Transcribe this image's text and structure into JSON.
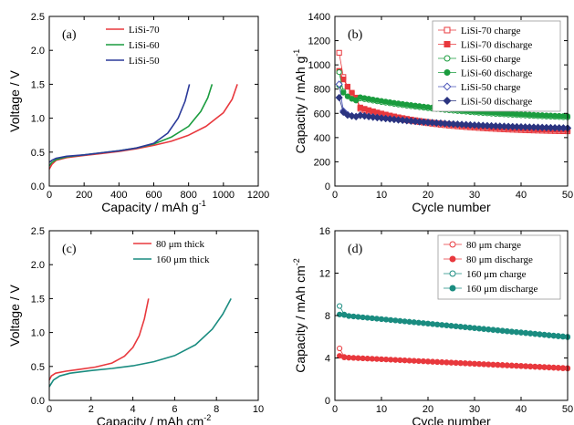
{
  "chart_data": [
    {
      "panel": "(a)",
      "type": "line",
      "xlabel": "Capacity / mAh g",
      "xlabel_sup": "-1",
      "ylabel": "Voltage / V",
      "xlim": [
        0,
        1200
      ],
      "ylim": [
        0,
        2.5
      ],
      "xticks": [
        "0",
        "200",
        "400",
        "600",
        "800",
        "1000",
        "1200"
      ],
      "yticks": [
        "0.0",
        "0.5",
        "1.0",
        "1.5",
        "2.0",
        "2.5"
      ],
      "legend_position": "top-center",
      "series": [
        {
          "name": "LiSi-70",
          "color": "#e8383d",
          "points": [
            [
              0,
              0.25
            ],
            [
              15,
              0.32
            ],
            [
              40,
              0.38
            ],
            [
              100,
              0.42
            ],
            [
              200,
              0.45
            ],
            [
              300,
              0.48
            ],
            [
              400,
              0.51
            ],
            [
              500,
              0.55
            ],
            [
              600,
              0.6
            ],
            [
              700,
              0.66
            ],
            [
              800,
              0.75
            ],
            [
              900,
              0.88
            ],
            [
              1000,
              1.08
            ],
            [
              1050,
              1.28
            ],
            [
              1080,
              1.5
            ]
          ]
        },
        {
          "name": "LiSi-60",
          "color": "#1a9c3e",
          "points": [
            [
              0,
              0.3
            ],
            [
              15,
              0.35
            ],
            [
              40,
              0.39
            ],
            [
              100,
              0.43
            ],
            [
              200,
              0.46
            ],
            [
              300,
              0.49
            ],
            [
              400,
              0.52
            ],
            [
              500,
              0.56
            ],
            [
              600,
              0.62
            ],
            [
              700,
              0.72
            ],
            [
              800,
              0.88
            ],
            [
              870,
              1.1
            ],
            [
              910,
              1.3
            ],
            [
              935,
              1.5
            ]
          ]
        },
        {
          "name": "LiSi-50",
          "color": "#2b3a9a",
          "points": [
            [
              0,
              0.35
            ],
            [
              15,
              0.38
            ],
            [
              40,
              0.41
            ],
            [
              100,
              0.44
            ],
            [
              200,
              0.46
            ],
            [
              300,
              0.49
            ],
            [
              400,
              0.52
            ],
            [
              500,
              0.56
            ],
            [
              600,
              0.63
            ],
            [
              680,
              0.78
            ],
            [
              740,
              1.0
            ],
            [
              780,
              1.25
            ],
            [
              805,
              1.5
            ]
          ]
        }
      ]
    },
    {
      "panel": "(b)",
      "type": "scatter",
      "xlabel": "Cycle number",
      "ylabel": "Capacity / mAh g",
      "ylabel_sup": "-1",
      "xlim": [
        0,
        55
      ],
      "ylim": [
        0,
        1400
      ],
      "xticks": [
        "0",
        "10",
        "20",
        "30",
        "40",
        "50"
      ],
      "yticks": [
        "0",
        "200",
        "400",
        "600",
        "800",
        "1000",
        "1200",
        "1400"
      ],
      "legend_position": "top-right",
      "series": [
        {
          "name": "LiSi-70 charge",
          "color": "#e8383d",
          "marker": "square",
          "filled": false,
          "start": [
            1100,
            900,
            820,
            760,
            720
          ],
          "k": 38,
          "a": 210,
          "f": 440
        },
        {
          "name": "LiSi-70 discharge",
          "color": "#e8383d",
          "marker": "square",
          "filled": true,
          "start": [
            950,
            880,
            820,
            770,
            730
          ],
          "k": 38,
          "a": 210,
          "f": 450
        },
        {
          "name": "LiSi-60 charge",
          "color": "#1a9c3e",
          "marker": "circle",
          "filled": false,
          "start": [
            940,
            780,
            740,
            720,
            710
          ],
          "k": 65,
          "a": 200,
          "f": 530
        },
        {
          "name": "LiSi-60 discharge",
          "color": "#1a9c3e",
          "marker": "circle",
          "filled": true,
          "start": [
            830,
            770,
            740,
            720,
            705
          ],
          "k": 65,
          "a": 200,
          "f": 540
        },
        {
          "name": "LiSi-50 charge",
          "color": "#4a54b8",
          "marker": "diamond",
          "filled": false,
          "start": [
            840,
            620,
            590,
            580,
            575
          ],
          "k": 55,
          "a": 130,
          "f": 460
        },
        {
          "name": "LiSi-50 discharge",
          "color": "#2b3480",
          "marker": "diamond",
          "filled": true,
          "start": [
            730,
            610,
            585,
            578,
            572
          ],
          "k": 55,
          "a": 125,
          "f": 462
        }
      ],
      "n_cycles": 55
    },
    {
      "panel": "(c)",
      "type": "line",
      "xlabel": "Capacity / mAh cm",
      "xlabel_sup": "-2",
      "ylabel": "Voltage / V",
      "xlim": [
        0,
        10
      ],
      "ylim": [
        0,
        2.5
      ],
      "xticks": [
        "0",
        "2",
        "4",
        "6",
        "8",
        "10"
      ],
      "yticks": [
        "0.0",
        "0.5",
        "1.0",
        "1.5",
        "2.0",
        "2.5"
      ],
      "legend_position": "top-center",
      "series": [
        {
          "name": "80 μm thick",
          "color": "#e8383d",
          "points": [
            [
              0,
              0.3
            ],
            [
              0.1,
              0.36
            ],
            [
              0.3,
              0.4
            ],
            [
              0.8,
              0.43
            ],
            [
              1.5,
              0.46
            ],
            [
              2.2,
              0.49
            ],
            [
              3.0,
              0.55
            ],
            [
              3.6,
              0.65
            ],
            [
              4.0,
              0.78
            ],
            [
              4.3,
              0.95
            ],
            [
              4.55,
              1.2
            ],
            [
              4.75,
              1.5
            ]
          ]
        },
        {
          "name": "160 μm thick",
          "color": "#1a8c80",
          "points": [
            [
              0,
              0.2
            ],
            [
              0.2,
              0.3
            ],
            [
              0.5,
              0.36
            ],
            [
              1.0,
              0.4
            ],
            [
              2.0,
              0.44
            ],
            [
              3.0,
              0.47
            ],
            [
              4.0,
              0.51
            ],
            [
              5.0,
              0.57
            ],
            [
              6.0,
              0.66
            ],
            [
              7.0,
              0.82
            ],
            [
              7.8,
              1.05
            ],
            [
              8.3,
              1.27
            ],
            [
              8.7,
              1.5
            ]
          ]
        }
      ]
    },
    {
      "panel": "(d)",
      "type": "scatter",
      "xlabel": "Cycle number",
      "ylabel": "Capacity / mAh cm",
      "ylabel_sup": "-2",
      "xlim": [
        0,
        50
      ],
      "ylim": [
        0,
        16
      ],
      "xticks": [
        "0",
        "10",
        "20",
        "30",
        "40",
        "50"
      ],
      "yticks": [
        "0",
        "4",
        "8",
        "12",
        "16"
      ],
      "legend_position": "top-right",
      "series": [
        {
          "name": "80 μm charge",
          "color": "#e8383d",
          "marker": "circle",
          "filled": false,
          "start": [
            4.9,
            4.1
          ],
          "y0": 4.05,
          "y1": 3.0
        },
        {
          "name": "80 μm discharge",
          "color": "#e8383d",
          "marker": "circle",
          "filled": true,
          "start": [
            4.2,
            4.05
          ],
          "y0": 4.05,
          "y1": 3.05
        },
        {
          "name": "160 μm charge",
          "color": "#1a8c80",
          "marker": "circle",
          "filled": false,
          "start": [
            8.9,
            8.1
          ],
          "y0": 8.0,
          "y1": 5.95
        },
        {
          "name": "160 μm discharge",
          "color": "#1a8c80",
          "marker": "circle",
          "filled": true,
          "start": [
            8.1,
            8.05
          ],
          "y0": 8.0,
          "y1": 6.0
        }
      ],
      "n_cycles": 50
    }
  ]
}
